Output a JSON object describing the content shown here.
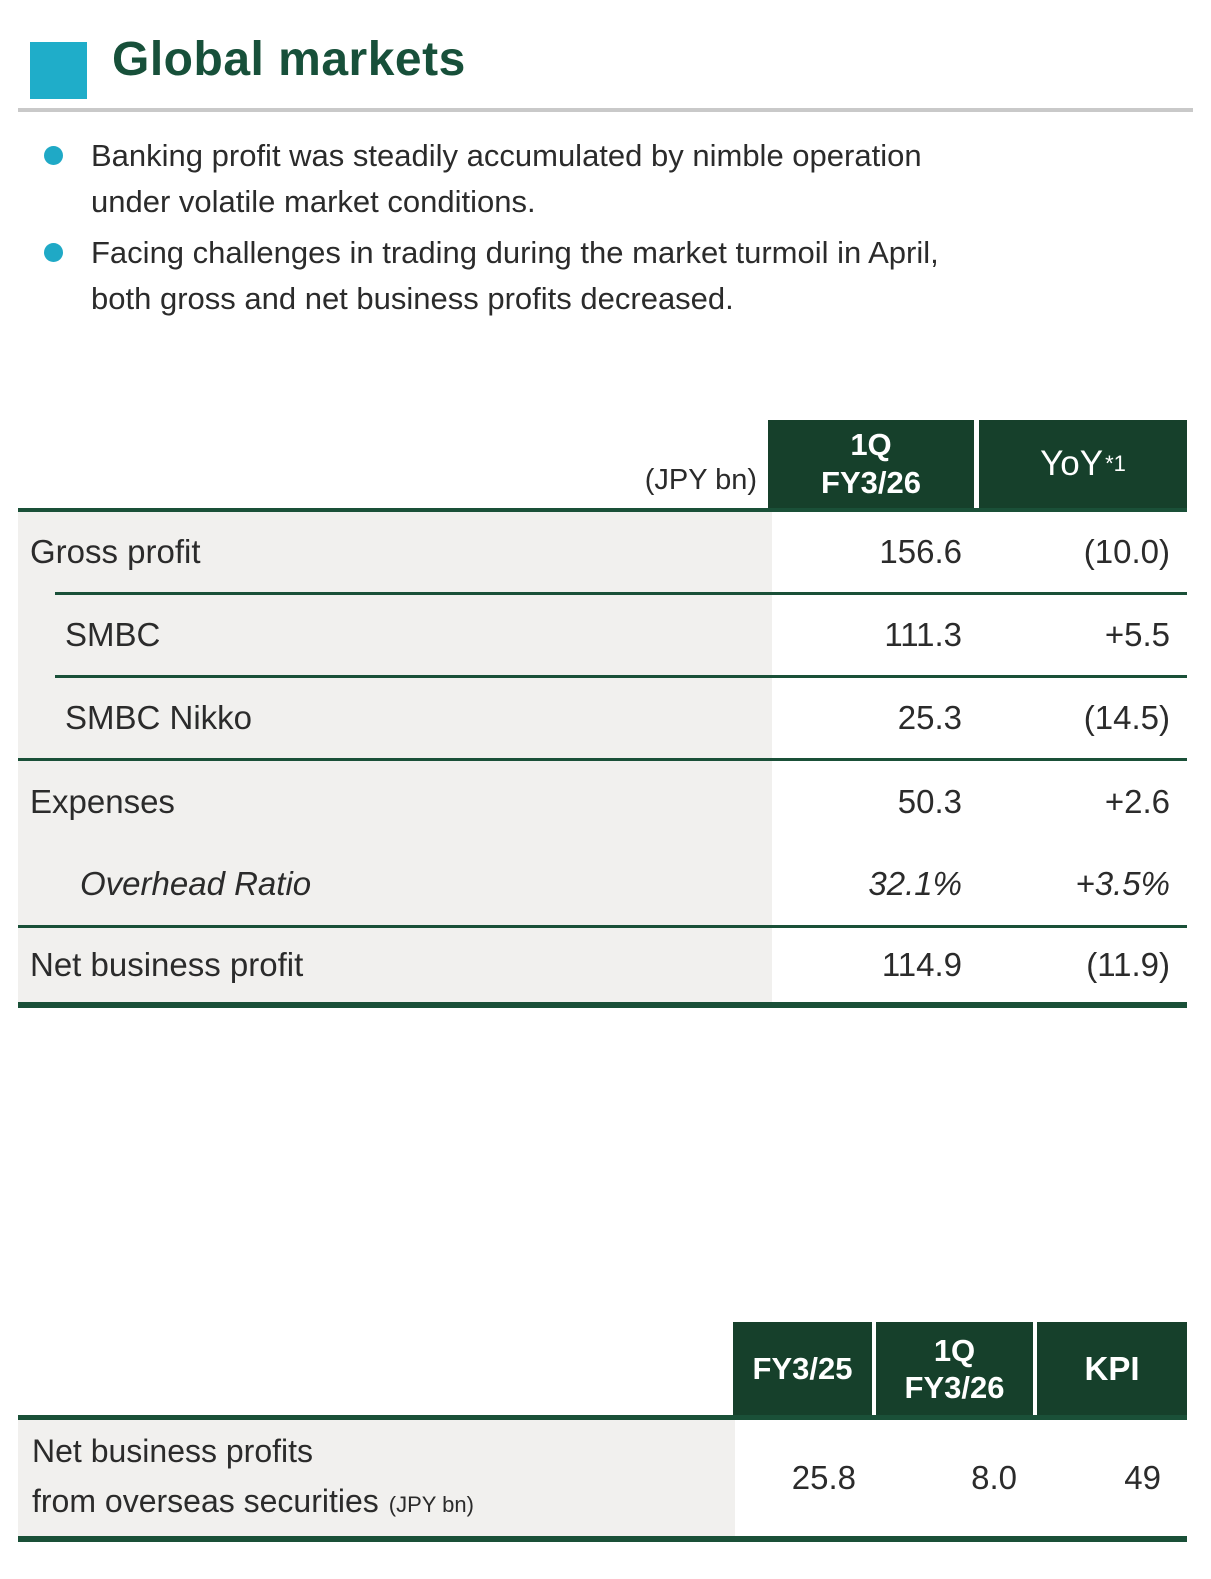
{
  "page": {
    "title": "Global markets"
  },
  "colors": {
    "accent_teal": "#1FADC9",
    "title_green": "#17503A",
    "header_green": "#16402B",
    "line_green": "#1A5038",
    "row_gray": "#F1F0EE",
    "divider_gray": "#C9C9C9",
    "text": "#2B2B2B"
  },
  "bullets": [
    {
      "line1": "Banking profit was steadily accumulated by nimble operation",
      "line2": "under volatile market conditions."
    },
    {
      "line1": "Facing challenges in trading during the market turmoil in April,",
      "line2": "both gross and net business profits decreased."
    }
  ],
  "main_table": {
    "unit_label": "(JPY bn)",
    "col_period_line1": "1Q",
    "col_period_line2": "FY3/26",
    "col_yoy": "YoY",
    "col_yoy_note": "*1",
    "rows": [
      {
        "label": "Gross profit",
        "value": "156.6",
        "yoy": "(10.0)"
      },
      {
        "label": "SMBC",
        "value": "111.3",
        "yoy": "+5.5"
      },
      {
        "label": "SMBC Nikko",
        "value": "25.3",
        "yoy": "(14.5)"
      },
      {
        "label": "Expenses",
        "value": "50.3",
        "yoy": "+2.6"
      },
      {
        "label": "Overhead Ratio",
        "value": "32.1%",
        "yoy": "+3.5%"
      },
      {
        "label": "Net business profit",
        "value": "114.9",
        "yoy": "(11.9)"
      }
    ]
  },
  "kpi_table": {
    "col1": "FY3/25",
    "col2_line1": "1Q",
    "col2_line2": "FY3/26",
    "col3": "KPI",
    "row_label_line1": "Net business profits",
    "row_label_line2": "from overseas securities",
    "row_label_unit": "(JPY bn)",
    "values": [
      "25.8",
      "8.0",
      "49"
    ]
  }
}
